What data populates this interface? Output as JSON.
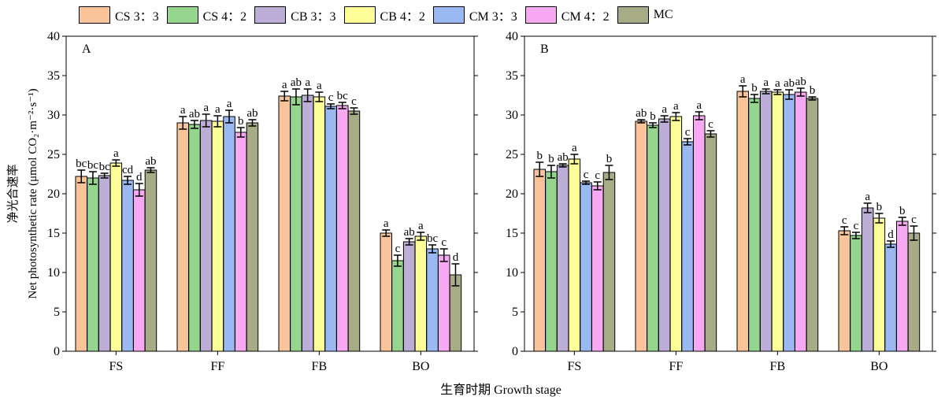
{
  "legend": [
    {
      "name": "CS 3：3",
      "color": "#f9c49a"
    },
    {
      "name": "CS 4：2",
      "color": "#95d58e"
    },
    {
      "name": "CB 3：3",
      "color": "#bcaed6"
    },
    {
      "name": "CB 4：2",
      "color": "#fefe99"
    },
    {
      "name": "CM 3：3",
      "color": "#9ab8f2"
    },
    {
      "name": "CM 4：2",
      "color": "#f7a8f2"
    },
    {
      "name": "MC",
      "color": "#a7ab86"
    }
  ],
  "ylabel_cn": "净光合速率",
  "ylabel_en": "Net photosynthetic rate (μmol CO₂·m⁻²·s⁻¹)",
  "xlabel": "生育时期 Growth stage",
  "chart_data": [
    {
      "type": "bar",
      "panel_label": "A",
      "categories": [
        "FS",
        "FF",
        "FB",
        "BO"
      ],
      "ylim": [
        0,
        40
      ],
      "yticks": [
        0,
        5,
        10,
        15,
        20,
        25,
        30,
        35,
        40
      ],
      "series": [
        {
          "name": "CS 3：3",
          "values": [
            22.2,
            29.0,
            32.4,
            15.0
          ],
          "errors": [
            0.8,
            0.8,
            0.6,
            0.4
          ],
          "letters": [
            "bc",
            "a",
            "a",
            "a"
          ]
        },
        {
          "name": "CS 4：2",
          "values": [
            22.0,
            28.8,
            32.3,
            11.5
          ],
          "errors": [
            0.8,
            0.5,
            1.0,
            0.7
          ],
          "letters": [
            "bc",
            "ab",
            "ab",
            "c"
          ]
        },
        {
          "name": "CB 3：3",
          "values": [
            22.3,
            29.3,
            32.5,
            13.9
          ],
          "errors": [
            0.3,
            0.8,
            0.8,
            0.4
          ],
          "letters": [
            "bc",
            "a",
            "a",
            "ab"
          ]
        },
        {
          "name": "CB 4：2",
          "values": [
            23.9,
            29.2,
            32.3,
            14.6
          ],
          "errors": [
            0.4,
            0.7,
            0.6,
            0.5
          ],
          "letters": [
            "a",
            "a",
            "a",
            "a"
          ]
        },
        {
          "name": "CM 3：3",
          "values": [
            21.7,
            29.8,
            31.1,
            13.0
          ],
          "errors": [
            0.5,
            0.8,
            0.3,
            0.5
          ],
          "letters": [
            "cd",
            "a",
            "c",
            "bc"
          ]
        },
        {
          "name": "CM 4：2",
          "values": [
            20.5,
            27.8,
            31.2,
            12.2
          ],
          "errors": [
            0.8,
            0.6,
            0.4,
            0.8
          ],
          "letters": [
            "d",
            "b",
            "bc",
            "c"
          ]
        },
        {
          "name": "MC",
          "values": [
            23.0,
            29.0,
            30.5,
            9.7
          ],
          "errors": [
            0.3,
            0.4,
            0.4,
            1.4
          ],
          "letters": [
            "ab",
            "ab",
            "c",
            "d"
          ]
        }
      ]
    },
    {
      "type": "bar",
      "panel_label": "B",
      "categories": [
        "FS",
        "FF",
        "FB",
        "BO"
      ],
      "ylim": [
        0,
        40
      ],
      "yticks": [
        0,
        5,
        10,
        15,
        20,
        25,
        30,
        35,
        40
      ],
      "series": [
        {
          "name": "CS 3：3",
          "values": [
            23.1,
            29.2,
            33.0,
            15.3
          ],
          "errors": [
            0.9,
            0.2,
            0.7,
            0.5
          ],
          "letters": [
            "b",
            "ab",
            "a",
            "c"
          ]
        },
        {
          "name": "CS 4：2",
          "values": [
            22.8,
            28.7,
            32.1,
            14.7
          ],
          "errors": [
            0.8,
            0.3,
            0.5,
            0.4
          ],
          "letters": [
            "b",
            "b",
            "b",
            "c"
          ]
        },
        {
          "name": "CB 3：3",
          "values": [
            23.6,
            29.5,
            33.0,
            18.2
          ],
          "errors": [
            0.2,
            0.4,
            0.3,
            0.6
          ],
          "letters": [
            "ab",
            "a",
            "a",
            "a"
          ]
        },
        {
          "name": "CB 4：2",
          "values": [
            24.4,
            29.8,
            32.9,
            16.9
          ],
          "errors": [
            0.6,
            0.5,
            0.3,
            0.6
          ],
          "letters": [
            "a",
            "a",
            "a",
            "b"
          ]
        },
        {
          "name": "CM 3：3",
          "values": [
            21.4,
            26.6,
            32.6,
            13.6
          ],
          "errors": [
            0.2,
            0.4,
            0.6,
            0.4
          ],
          "letters": [
            "c",
            "c",
            "ab",
            "d"
          ]
        },
        {
          "name": "CM 4：2",
          "values": [
            21.0,
            29.9,
            32.9,
            16.5
          ],
          "errors": [
            0.5,
            0.5,
            0.5,
            0.5
          ],
          "letters": [
            "c",
            "a",
            "ab",
            "b"
          ]
        },
        {
          "name": "MC",
          "values": [
            22.7,
            27.6,
            32.1,
            15.0
          ],
          "errors": [
            0.9,
            0.4,
            0.2,
            0.9
          ],
          "letters": [
            "b",
            "c",
            "b",
            "c"
          ]
        }
      ]
    }
  ]
}
